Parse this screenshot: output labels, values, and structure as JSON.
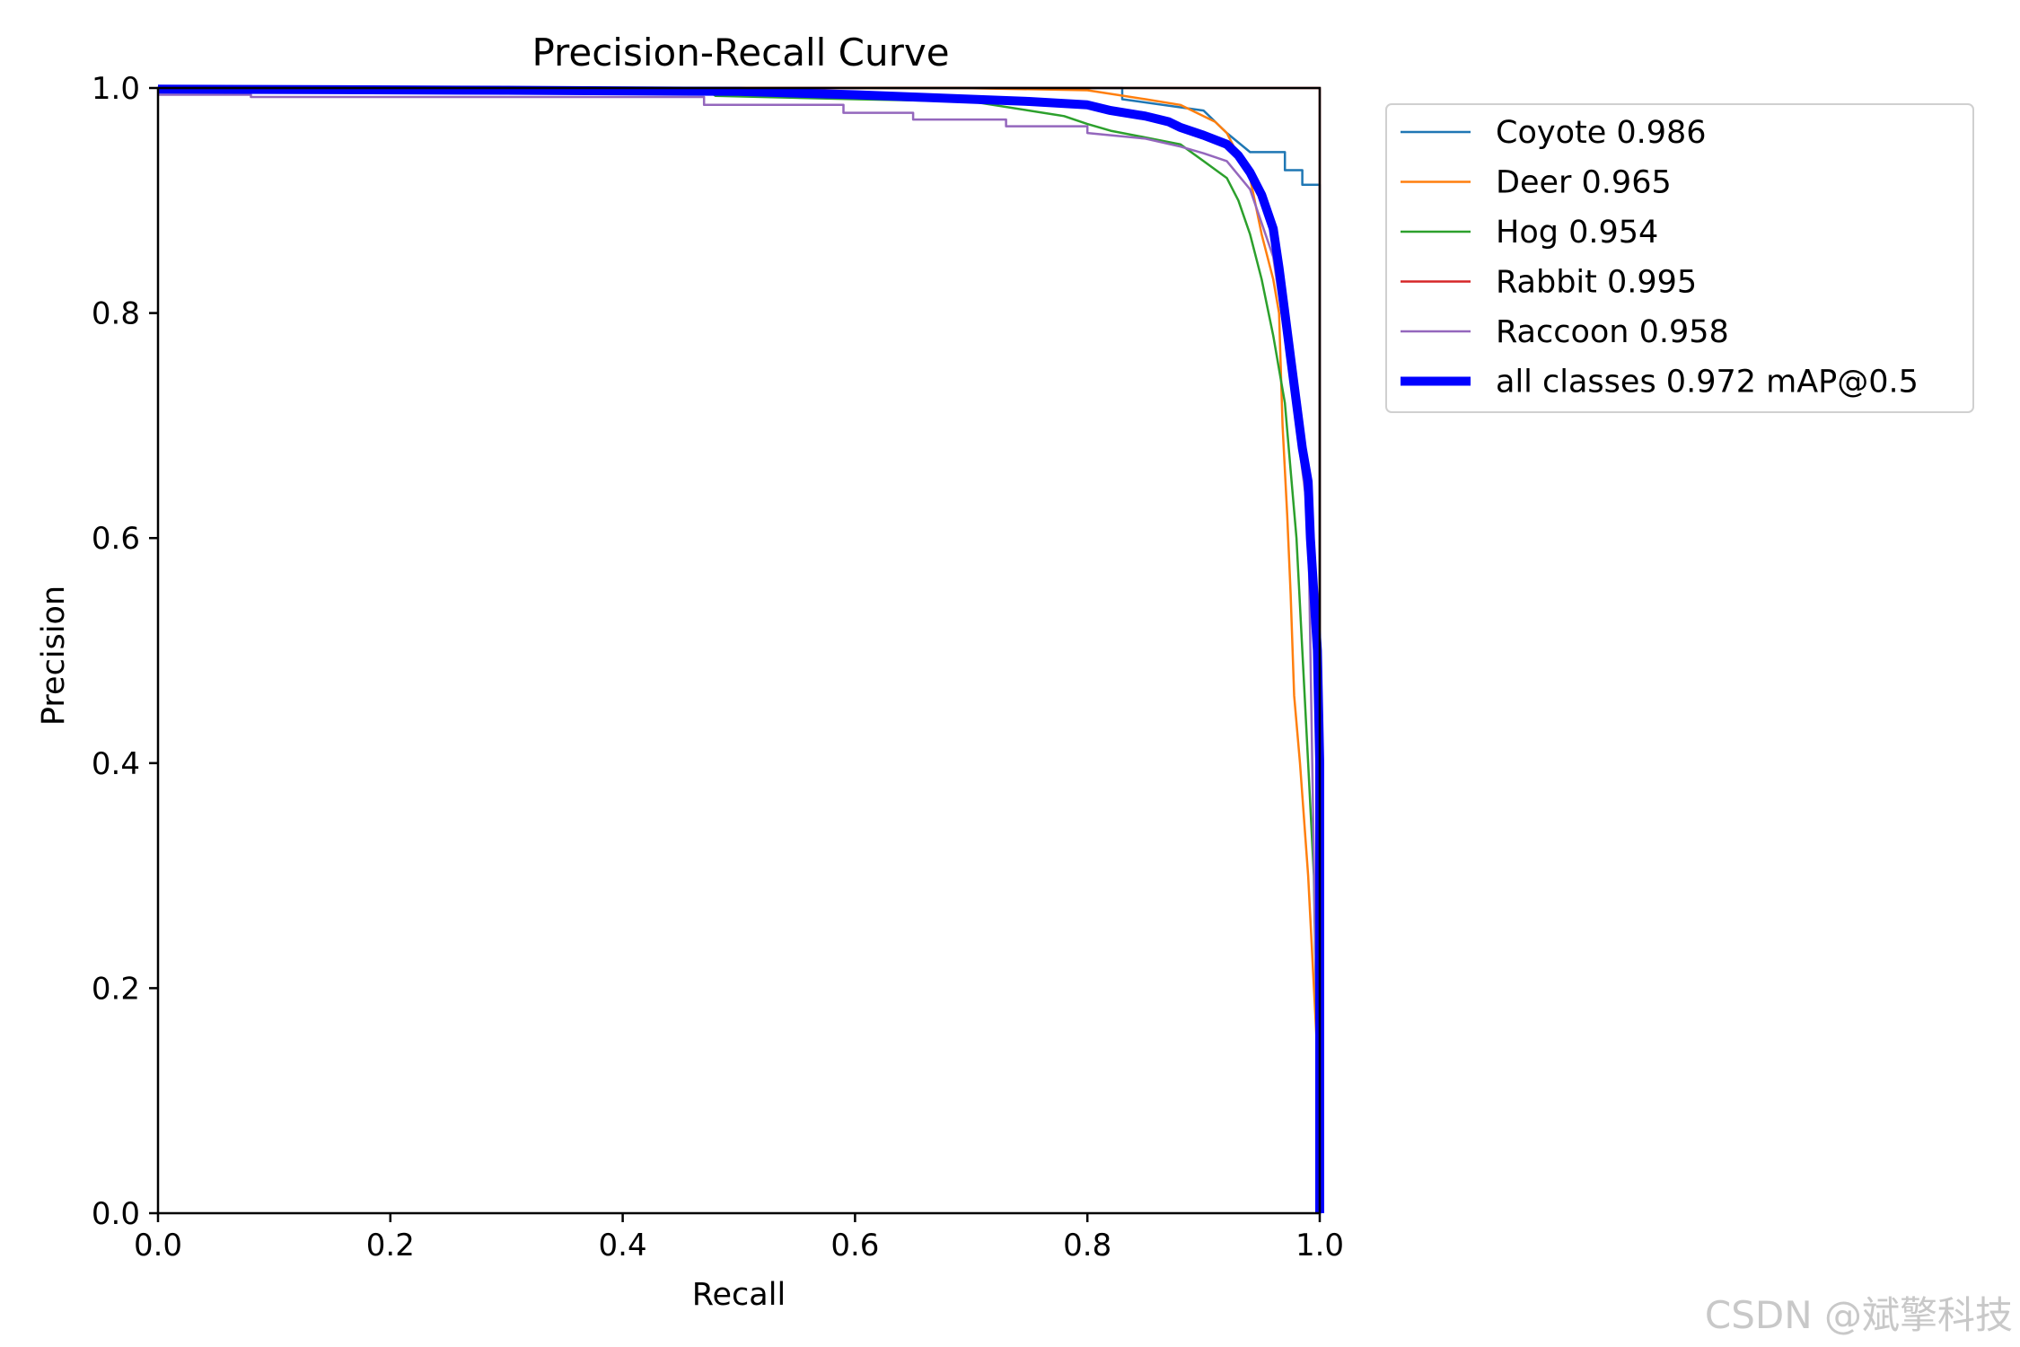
{
  "chart_data": {
    "type": "line",
    "title": "Precision-Recall Curve",
    "xlabel": "Recall",
    "ylabel": "Precision",
    "xlim": [
      0,
      1
    ],
    "ylim": [
      0,
      1
    ],
    "xticks": [
      "0.0",
      "0.2",
      "0.4",
      "0.6",
      "0.8",
      "1.0"
    ],
    "yticks": [
      "0.0",
      "0.2",
      "0.4",
      "0.6",
      "0.8",
      "1.0"
    ],
    "grid": false,
    "legend_position": "outside-top-right",
    "series": [
      {
        "name": "Coyote 0.986",
        "color": "#1f77b4",
        "width": "thin",
        "points": [
          [
            0,
            1.0
          ],
          [
            0.83,
            1.0
          ],
          [
            0.83,
            0.99
          ],
          [
            0.9,
            0.98
          ],
          [
            0.92,
            0.96
          ],
          [
            0.94,
            0.943
          ],
          [
            0.97,
            0.943
          ],
          [
            0.97,
            0.927
          ],
          [
            0.985,
            0.927
          ],
          [
            0.985,
            0.914
          ],
          [
            1.0,
            0.914
          ],
          [
            1.0,
            0.0
          ]
        ]
      },
      {
        "name": "Deer 0.965",
        "color": "#ff7f0e",
        "width": "thin",
        "points": [
          [
            0,
            1.0
          ],
          [
            0.69,
            1.0
          ],
          [
            0.8,
            0.998
          ],
          [
            0.85,
            0.99
          ],
          [
            0.88,
            0.985
          ],
          [
            0.91,
            0.97
          ],
          [
            0.92,
            0.96
          ],
          [
            0.93,
            0.94
          ],
          [
            0.94,
            0.92
          ],
          [
            0.95,
            0.87
          ],
          [
            0.96,
            0.83
          ],
          [
            0.965,
            0.8
          ],
          [
            0.968,
            0.7
          ],
          [
            0.972,
            0.62
          ],
          [
            0.975,
            0.55
          ],
          [
            0.978,
            0.46
          ],
          [
            0.983,
            0.4
          ],
          [
            0.99,
            0.3
          ],
          [
            1.0,
            0.1
          ],
          [
            1.0,
            0.0
          ]
        ]
      },
      {
        "name": "Hog 0.954",
        "color": "#2ca02c",
        "width": "thin",
        "points": [
          [
            0,
            1.0
          ],
          [
            0.47,
            1.0
          ],
          [
            0.48,
            0.993
          ],
          [
            0.6,
            0.99
          ],
          [
            0.7,
            0.988
          ],
          [
            0.78,
            0.975
          ],
          [
            0.8,
            0.968
          ],
          [
            0.82,
            0.962
          ],
          [
            0.85,
            0.956
          ],
          [
            0.88,
            0.95
          ],
          [
            0.9,
            0.935
          ],
          [
            0.92,
            0.92
          ],
          [
            0.93,
            0.9
          ],
          [
            0.94,
            0.87
          ],
          [
            0.95,
            0.83
          ],
          [
            0.96,
            0.78
          ],
          [
            0.97,
            0.72
          ],
          [
            0.975,
            0.66
          ],
          [
            0.98,
            0.6
          ],
          [
            0.985,
            0.5
          ],
          [
            0.99,
            0.4
          ],
          [
            0.995,
            0.3
          ],
          [
            1.0,
            0.0
          ]
        ]
      },
      {
        "name": "Rabbit 0.995",
        "color": "#d62728",
        "width": "thin",
        "points": [
          [
            0,
            1.0
          ],
          [
            1.0,
            1.0
          ],
          [
            1.0,
            0.5
          ],
          [
            1.0,
            0.0
          ]
        ]
      },
      {
        "name": "Raccoon 0.958",
        "color": "#9467bd",
        "width": "thin",
        "points": [
          [
            0,
            0.994
          ],
          [
            0.08,
            0.994
          ],
          [
            0.08,
            0.992
          ],
          [
            0.47,
            0.992
          ],
          [
            0.47,
            0.985
          ],
          [
            0.59,
            0.985
          ],
          [
            0.59,
            0.978
          ],
          [
            0.65,
            0.978
          ],
          [
            0.65,
            0.972
          ],
          [
            0.73,
            0.972
          ],
          [
            0.73,
            0.966
          ],
          [
            0.8,
            0.966
          ],
          [
            0.8,
            0.96
          ],
          [
            0.85,
            0.955
          ],
          [
            0.88,
            0.948
          ],
          [
            0.9,
            0.942
          ],
          [
            0.92,
            0.935
          ],
          [
            0.94,
            0.91
          ],
          [
            0.96,
            0.85
          ],
          [
            0.97,
            0.78
          ],
          [
            0.98,
            0.7
          ],
          [
            0.99,
            0.62
          ],
          [
            1.0,
            0.0
          ]
        ]
      },
      {
        "name": "all classes 0.972 mAP@0.5",
        "color": "#0000ff",
        "width": "thick",
        "points": [
          [
            0,
            0.999
          ],
          [
            0.3,
            0.998
          ],
          [
            0.5,
            0.997
          ],
          [
            0.6,
            0.994
          ],
          [
            0.65,
            0.992
          ],
          [
            0.7,
            0.99
          ],
          [
            0.75,
            0.988
          ],
          [
            0.8,
            0.985
          ],
          [
            0.82,
            0.98
          ],
          [
            0.85,
            0.975
          ],
          [
            0.87,
            0.97
          ],
          [
            0.88,
            0.965
          ],
          [
            0.9,
            0.958
          ],
          [
            0.92,
            0.95
          ],
          [
            0.93,
            0.94
          ],
          [
            0.94,
            0.925
          ],
          [
            0.95,
            0.905
          ],
          [
            0.96,
            0.875
          ],
          [
            0.965,
            0.84
          ],
          [
            0.97,
            0.8
          ],
          [
            0.975,
            0.76
          ],
          [
            0.98,
            0.72
          ],
          [
            0.985,
            0.68
          ],
          [
            0.99,
            0.65
          ],
          [
            0.992,
            0.6
          ],
          [
            0.995,
            0.55
          ],
          [
            0.998,
            0.5
          ],
          [
            1.0,
            0.4
          ],
          [
            1.0,
            0.0
          ]
        ]
      }
    ]
  },
  "watermark": "CSDN @斌擎科技"
}
